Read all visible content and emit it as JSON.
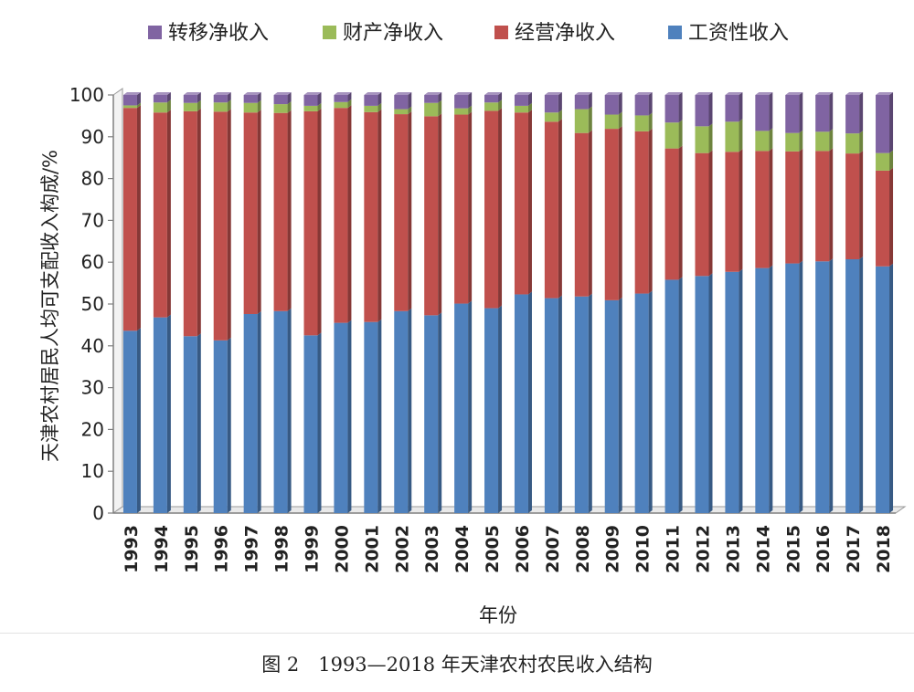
{
  "chart_data": {
    "type": "bar",
    "stacked": true,
    "title": "",
    "xlabel": "年份",
    "ylabel": "天津农村居民人均可支配收入构成/%",
    "ylim": [
      0,
      100
    ],
    "yticks": [
      0,
      10,
      20,
      30,
      40,
      50,
      60,
      70,
      80,
      90,
      100
    ],
    "grid": false,
    "legend_position": "top",
    "categories": [
      "1993",
      "1994",
      "1995",
      "1996",
      "1997",
      "1998",
      "1999",
      "2000",
      "2001",
      "2002",
      "2003",
      "2004",
      "2005",
      "2006",
      "2007",
      "2008",
      "2009",
      "2010",
      "2011",
      "2012",
      "2013",
      "2014",
      "2015",
      "2016",
      "2017",
      "2018"
    ],
    "series": [
      {
        "name": "工资性收入",
        "color": "#4f81bd",
        "values": [
          43.6,
          46.8,
          42.3,
          41.3,
          47.6,
          48.3,
          42.5,
          45.5,
          45.7,
          48.3,
          47.3,
          50.1,
          49.0,
          52.3,
          51.4,
          51.8,
          50.9,
          52.5,
          55.8,
          56.7,
          57.7,
          58.6,
          59.7,
          60.2,
          60.7,
          59.0
        ]
      },
      {
        "name": "经营净收入",
        "color": "#c0504d",
        "values": [
          53.3,
          49.0,
          53.8,
          54.7,
          48.2,
          47.4,
          53.6,
          51.4,
          50.2,
          47.1,
          47.6,
          45.2,
          47.2,
          43.5,
          42.2,
          39.1,
          41.0,
          38.8,
          31.4,
          29.4,
          28.7,
          28.0,
          26.8,
          26.4,
          25.3,
          22.9
        ]
      },
      {
        "name": "财产净收入",
        "color": "#9bbb59",
        "values": [
          0.6,
          2.4,
          2.0,
          2.2,
          2.3,
          2.1,
          1.3,
          1.4,
          1.5,
          1.2,
          3.2,
          1.5,
          2.0,
          1.6,
          2.2,
          5.7,
          3.4,
          3.8,
          6.2,
          6.4,
          7.2,
          4.8,
          4.4,
          4.6,
          4.8,
          4.2
        ]
      },
      {
        "name": "转移净收入",
        "color": "#8064a2",
        "values": [
          2.5,
          1.8,
          1.9,
          1.8,
          1.9,
          2.2,
          2.6,
          1.7,
          2.6,
          3.4,
          1.9,
          3.2,
          1.8,
          2.6,
          4.2,
          3.4,
          4.7,
          4.9,
          6.6,
          7.5,
          6.4,
          8.6,
          9.1,
          8.8,
          9.2,
          13.9
        ]
      }
    ]
  },
  "caption": "图 2　1993—2018 年天津农村农民收入结构"
}
